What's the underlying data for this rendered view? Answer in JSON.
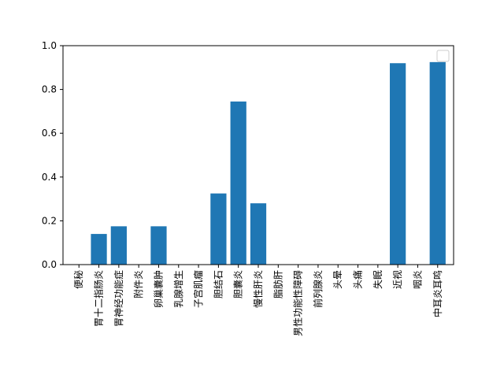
{
  "chart_data": {
    "type": "bar",
    "categories": [
      "便秘",
      "胃十二指肠炎",
      "胃神经功能症",
      "附件炎",
      "卵巢囊肿",
      "乳腺增生",
      "子宫肌瘤",
      "胆结石",
      "胆囊炎",
      "慢性肝炎",
      "脂肪肝",
      "男性功能性障碍",
      "前列腺炎",
      "头晕",
      "头痛",
      "失眠",
      "近视",
      "咽炎",
      "中耳炎耳鸣"
    ],
    "values": [
      0,
      0.14,
      0.175,
      0,
      0.175,
      0,
      0,
      0.325,
      0.745,
      0.28,
      0,
      0,
      0,
      0,
      0,
      0,
      0.92,
      0,
      0.925
    ],
    "ylim": [
      0,
      1.0
    ],
    "yticks": [
      "0.0",
      "0.2",
      "0.4",
      "0.6",
      "0.8",
      "1.0"
    ],
    "title": "",
    "xlabel": "",
    "ylabel": "",
    "legend": "top-right (empty)",
    "grid": false,
    "bar_color": "#1f77b4"
  }
}
